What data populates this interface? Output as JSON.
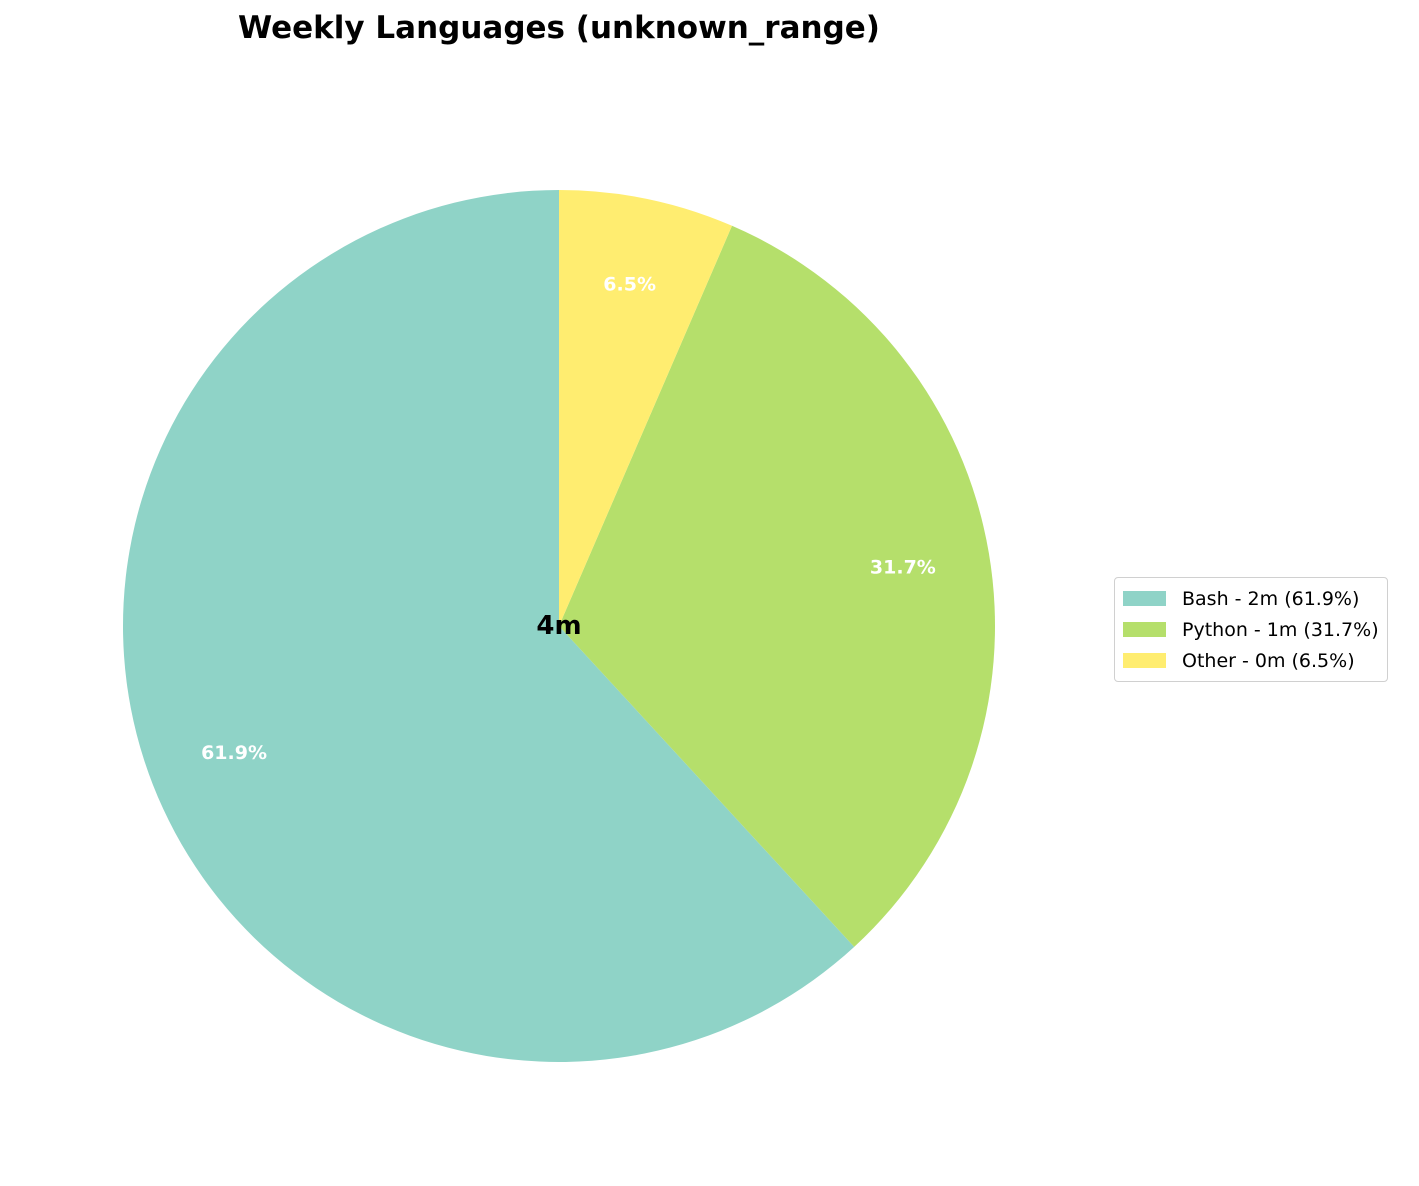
{
  "chart_data": {
    "type": "pie",
    "title": "Weekly Languages (unknown_range)",
    "center_label": "4m",
    "start_angle": "top, counter-clockwise",
    "legend_position": "right",
    "slices": [
      {
        "label": "Bash",
        "percent": 61.9,
        "pct_label": "61.9%",
        "legend": "Bash - 2m (61.9%)",
        "color": "#8fd3c7"
      },
      {
        "label": "Python",
        "percent": 31.7,
        "pct_label": "31.7%",
        "legend": "Python - 1m (31.7%)",
        "color": "#b5df6b"
      },
      {
        "label": "Other",
        "percent": 6.5,
        "pct_label": "6.5%",
        "legend": "Other - 0m (6.5%)",
        "color": "#ffed70"
      }
    ]
  }
}
